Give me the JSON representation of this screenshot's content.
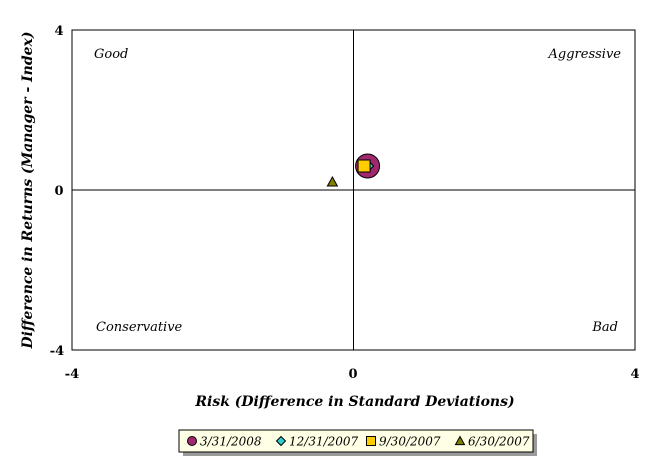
{
  "chart_data": {
    "type": "scatter",
    "title": "",
    "xlabel": "Risk (Difference in Standard Deviations)",
    "ylabel": "Difference in Returns (Manager - Index)",
    "xlim": [
      -4,
      4
    ],
    "ylim": [
      -4,
      4
    ],
    "x_ticks": [
      "-4",
      "0",
      "4"
    ],
    "y_ticks": [
      "4",
      "0",
      "-4"
    ],
    "grid": false,
    "legend_position": "bottom",
    "quadrant_labels": {
      "top_left": "Good",
      "top_right": "Aggressive",
      "bottom_left": "Conservative",
      "bottom_right": "Bad"
    },
    "series": [
      {
        "name": "3/31/2008",
        "marker": "circle",
        "color": "#a0286e",
        "points": [
          {
            "x": 0.2,
            "y": 0.6
          }
        ]
      },
      {
        "name": "12/31/2007",
        "marker": "diamond",
        "color": "#33cccc",
        "points": [
          {
            "x": 0.2,
            "y": 0.6
          }
        ]
      },
      {
        "name": "9/30/2007",
        "marker": "square",
        "color": "#ffcc00",
        "points": [
          {
            "x": 0.15,
            "y": 0.6
          }
        ]
      },
      {
        "name": "6/30/2007",
        "marker": "triangle",
        "color": "#808000",
        "points": [
          {
            "x": -0.3,
            "y": 0.2
          }
        ]
      }
    ]
  }
}
